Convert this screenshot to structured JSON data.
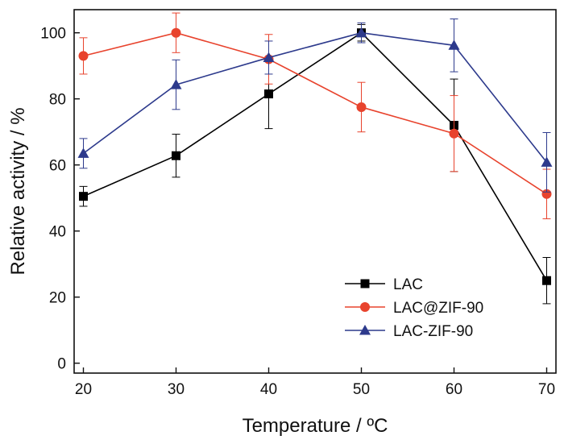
{
  "chart_data": {
    "type": "line",
    "title": "",
    "xlabel": "Temperature / ºC",
    "ylabel": "Relative activity / %",
    "x": [
      20,
      30,
      40,
      50,
      60,
      70
    ],
    "xlim": [
      19,
      71
    ],
    "ylim": [
      -3,
      107
    ],
    "xticks": [
      20,
      30,
      40,
      50,
      60,
      70
    ],
    "yticks": [
      0,
      20,
      40,
      60,
      80,
      100
    ],
    "grid": false,
    "legend_position": "bottom-right",
    "series": [
      {
        "name": "LAC",
        "color": "#000000",
        "marker": "square",
        "values": [
          50.5,
          62.8,
          81.5,
          100,
          72,
          25
        ],
        "errors": [
          3,
          6.5,
          10.5,
          2.5,
          14,
          7
        ]
      },
      {
        "name": "LAC@ZIF-90",
        "color": "#e8432d",
        "marker": "circle",
        "values": [
          93,
          100,
          92,
          77.5,
          69.5,
          51.2
        ],
        "errors": [
          5.5,
          6,
          7.5,
          7.5,
          11.5,
          7.5
        ]
      },
      {
        "name": "LAC-ZIF-90",
        "color": "#2d3a8c",
        "marker": "triangle",
        "values": [
          63.5,
          84.3,
          92.5,
          100,
          96.2,
          60.8
        ],
        "errors": [
          4.5,
          7.5,
          5,
          3,
          8,
          9
        ]
      }
    ]
  }
}
